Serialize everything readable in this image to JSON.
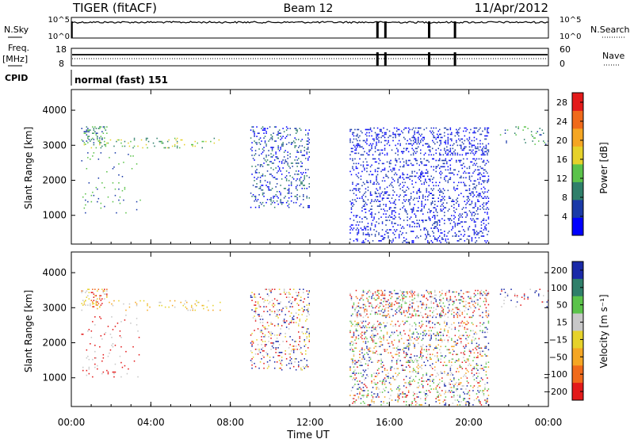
{
  "header": {
    "title": "TIGER (fitACF)",
    "beam": "Beam 12",
    "date": "11/Apr/2012"
  },
  "panel_labels": {
    "nsky": "N.Sky",
    "nsearch": "N.Search",
    "freq_line1": "Freq.",
    "freq_line2": "[MHz]",
    "nave": "Nave",
    "cpid": "CPID",
    "cpid_value": "normal (fast) 151"
  },
  "small_axes": {
    "noise_left_ticks": [
      "10^5",
      "10^0"
    ],
    "noise_right_ticks": [
      "10^5",
      "10^0"
    ],
    "freq_left_ticks": [
      "18",
      "8"
    ],
    "nave_right_ticks": [
      "60",
      "0"
    ]
  },
  "axis_text": {
    "x_label": "Time UT",
    "y_label": "Slant Range [km]",
    "power_cb_label": "Power [dB]",
    "velocity_cb_label": "Velocity [m s⁻¹]"
  },
  "chart_data": [
    {
      "type": "heatmap",
      "name": "power",
      "xlabel": "Time UT",
      "ylabel": "Slant Range [km]",
      "x_ticks": [
        "00:00",
        "04:00",
        "08:00",
        "12:00",
        "16:00",
        "20:00",
        "00:00"
      ],
      "xlim_hours": [
        0,
        24
      ],
      "y_ticks": [
        1000,
        2000,
        3000,
        4000
      ],
      "ylim": [
        180,
        4590
      ],
      "colorbar": {
        "label": "Power [dB]",
        "ticks": [
          4,
          8,
          12,
          16,
          20,
          24,
          28
        ],
        "range": [
          0,
          30
        ],
        "colors": [
          "#0000ff",
          "#1a3aa8",
          "#2f7f6a",
          "#5bc34a",
          "#e6d22a",
          "#f5a623",
          "#f06a1a",
          "#e31a1a"
        ]
      },
      "regions": [
        {
          "t": [
            0.5,
            1.8
          ],
          "r": [
            3000,
            3500
          ],
          "density": 0.45,
          "colors": [
            "#1a3aa8",
            "#2f7f6a",
            "#5bc34a"
          ]
        },
        {
          "t": [
            0.5,
            7.5
          ],
          "r": [
            2900,
            3200
          ],
          "density": 0.16,
          "colors": [
            "#5bc34a",
            "#2f7f6a",
            "#e6d22a"
          ]
        },
        {
          "t": [
            0.5,
            3.5
          ],
          "r": [
            1000,
            2800
          ],
          "density": 0.06,
          "colors": [
            "#1a3aa8",
            "#5bc34a"
          ]
        },
        {
          "t": [
            9.0,
            12.0
          ],
          "r": [
            1200,
            3500
          ],
          "density": 0.28,
          "colors": [
            "#1a3aa8",
            "#0000ff",
            "#2f7f6a"
          ]
        },
        {
          "t": [
            14.0,
            21.0
          ],
          "r": [
            2700,
            3500
          ],
          "density": 0.42,
          "colors": [
            "#1a3aa8",
            "#0000ff"
          ]
        },
        {
          "t": [
            14.0,
            21.0
          ],
          "r": [
            200,
            2600
          ],
          "density": 0.33,
          "colors": [
            "#1a3aa8",
            "#0000ff"
          ]
        },
        {
          "t": [
            21.5,
            24.0
          ],
          "r": [
            3000,
            3500
          ],
          "density": 0.12,
          "colors": [
            "#5bc34a",
            "#2f7f6a",
            "#1a3aa8"
          ]
        }
      ]
    },
    {
      "type": "heatmap",
      "name": "velocity",
      "xlabel": "Time UT",
      "ylabel": "Slant Range [km]",
      "x_ticks": [
        "00:00",
        "04:00",
        "08:00",
        "12:00",
        "16:00",
        "20:00",
        "00:00"
      ],
      "xlim_hours": [
        0,
        24
      ],
      "y_ticks": [
        1000,
        2000,
        3000,
        4000
      ],
      "ylim": [
        180,
        4590
      ],
      "colorbar": {
        "label": "Velocity [m s⁻¹]",
        "ticks": [
          200,
          100,
          50,
          15,
          -15,
          -50,
          -100,
          -200
        ],
        "colors": [
          "#1a2aa8",
          "#2f7f6a",
          "#5bc34a",
          "#c8c8c8",
          "#e6d22a",
          "#f5a623",
          "#f06a1a",
          "#e31a1a"
        ]
      },
      "regions": [
        {
          "t": [
            0.5,
            1.8
          ],
          "r": [
            3000,
            3500
          ],
          "density": 0.45,
          "colors": [
            "#c8c8c8",
            "#e6d22a",
            "#f06a1a",
            "#e31a1a"
          ]
        },
        {
          "t": [
            0.5,
            7.5
          ],
          "r": [
            2900,
            3200
          ],
          "density": 0.16,
          "colors": [
            "#c8c8c8",
            "#e6d22a",
            "#f5a623"
          ]
        },
        {
          "t": [
            0.5,
            3.5
          ],
          "r": [
            1000,
            2800
          ],
          "density": 0.06,
          "colors": [
            "#c8c8c8",
            "#e31a1a"
          ]
        },
        {
          "t": [
            9.0,
            12.0
          ],
          "r": [
            1200,
            3500
          ],
          "density": 0.28,
          "colors": [
            "#1a2aa8",
            "#e31a1a",
            "#c8c8c8",
            "#e6d22a"
          ]
        },
        {
          "t": [
            14.0,
            21.0
          ],
          "r": [
            2700,
            3500
          ],
          "density": 0.42,
          "colors": [
            "#e31a1a",
            "#f06a1a",
            "#c8c8c8",
            "#5bc34a",
            "#1a2aa8"
          ]
        },
        {
          "t": [
            14.0,
            21.0
          ],
          "r": [
            200,
            2600
          ],
          "density": 0.33,
          "colors": [
            "#e31a1a",
            "#c8c8c8",
            "#5bc34a",
            "#f5a623",
            "#1a2aa8"
          ]
        },
        {
          "t": [
            21.5,
            24.0
          ],
          "r": [
            3000,
            3500
          ],
          "density": 0.12,
          "colors": [
            "#c8c8c8",
            "#e31a1a",
            "#1a2aa8"
          ]
        }
      ]
    }
  ],
  "gaps_hours": [
    15.4,
    15.8,
    18.0,
    19.3
  ]
}
